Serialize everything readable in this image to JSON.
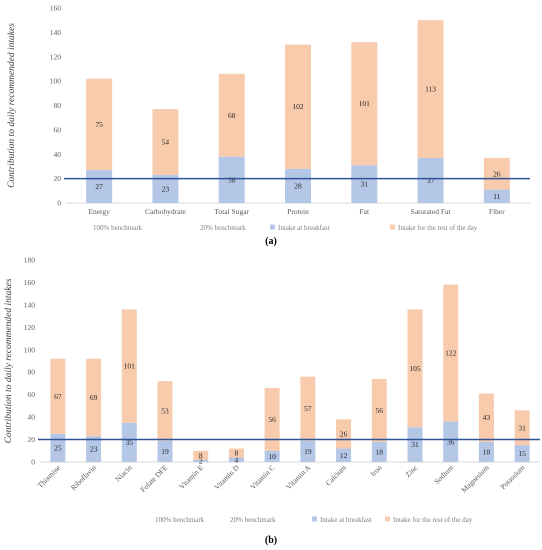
{
  "colors": {
    "breakfast": "#b4c7e7",
    "rest": "#f8cbad",
    "benchmark20": "#2f5597",
    "benchmark100": "#bfbfbf",
    "axis": "#d9d9d9",
    "grid": "#efefef"
  },
  "legend": {
    "b100": "100% benchmark",
    "b20": "20% benchmark",
    "breakfast": "Intake at breakfast",
    "rest": "Intake for the rest of the day"
  },
  "chart_data": [
    {
      "type": "bar",
      "stacked": true,
      "panel_label": "(a)",
      "ylabel": "Contribution to daily recommended intakes",
      "ylim": [
        0,
        160
      ],
      "yticks": [
        0,
        20,
        40,
        60,
        80,
        100,
        120,
        140,
        160
      ],
      "categories": [
        "Energy",
        "Carbohydrate",
        "Total Sugar",
        "Protein",
        "Fat",
        "Saturated Fat",
        "Fiber"
      ],
      "series": [
        {
          "name": "Intake at breakfast",
          "values": [
            27,
            23,
            38,
            28,
            31,
            37,
            11
          ]
        },
        {
          "name": "Intake for the rest of the day",
          "values": [
            75,
            54,
            68,
            102,
            101,
            113,
            26
          ]
        }
      ],
      "benchmarks": [
        {
          "name": "100% benchmark",
          "value": 100
        },
        {
          "name": "20% benchmark",
          "value": 20
        }
      ],
      "legend_position": "bottom",
      "x_label_rotation": 0
    },
    {
      "type": "bar",
      "stacked": true,
      "panel_label": "(b)",
      "ylabel": "Contribution to daily recommended intakes",
      "ylim": [
        0,
        180
      ],
      "yticks": [
        0,
        20,
        40,
        60,
        80,
        100,
        120,
        140,
        160,
        180
      ],
      "categories": [
        "Thiamine",
        "Riboflavin",
        "Niacin",
        "Folate DFE",
        "Vitamin E",
        "Vitamin D",
        "Vitamin C",
        "Vitamin A",
        "Calcium",
        "Iron",
        "Zinc",
        "Sodium",
        "Magnesium",
        "Potassium"
      ],
      "series": [
        {
          "name": "Intake at breakfast",
          "values": [
            25,
            23,
            35,
            19,
            2,
            4,
            10,
            19,
            12,
            18,
            31,
            36,
            18,
            15
          ]
        },
        {
          "name": "Intake for the rest of the day",
          "values": [
            67,
            69,
            101,
            53,
            8,
            8,
            56,
            57,
            26,
            56,
            105,
            122,
            43,
            31
          ]
        }
      ],
      "benchmarks": [
        {
          "name": "100% benchmark",
          "value": 100
        },
        {
          "name": "20% benchmark",
          "value": 20
        }
      ],
      "legend_position": "bottom",
      "x_label_rotation": -45
    }
  ]
}
